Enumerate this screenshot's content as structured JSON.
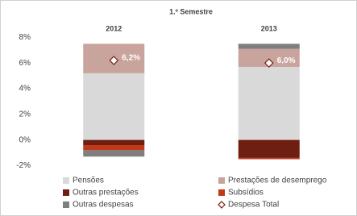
{
  "chart_data": {
    "type": "stacked-bar",
    "title": "1.º Semestre",
    "categories": [
      "2012",
      "2013"
    ],
    "series": [
      {
        "name": "Pensões",
        "color": "#d9d9d9",
        "values": [
          5.2,
          5.7
        ]
      },
      {
        "name": "Prestações de desemprego",
        "color": "#c8a49d",
        "values": [
          2.3,
          1.4
        ]
      },
      {
        "name": "Outras prestações",
        "color": "#6e1f12",
        "values": [
          -0.4,
          -1.4
        ]
      },
      {
        "name": "Subsídios",
        "color": "#c0391b",
        "values": [
          -0.4,
          -0.1
        ]
      },
      {
        "name": "Outras despesas",
        "color": "#7f7f7f",
        "values": [
          -0.5,
          0.4
        ]
      }
    ],
    "total": {
      "name": "Despesa Total",
      "color": "#7a1f12",
      "values": [
        6.2,
        6.0
      ],
      "value_labels": [
        "6,2%",
        "6,0%"
      ]
    },
    "ylim": [
      -2.6,
      8.4
    ],
    "yticks": [
      {
        "value": -2,
        "label": "-2%"
      },
      {
        "value": 0,
        "label": "0%"
      },
      {
        "value": 2,
        "label": "2%"
      },
      {
        "value": 4,
        "label": "4%"
      },
      {
        "value": 6,
        "label": "6%"
      },
      {
        "value": 8,
        "label": "8%"
      }
    ],
    "grid": false
  }
}
